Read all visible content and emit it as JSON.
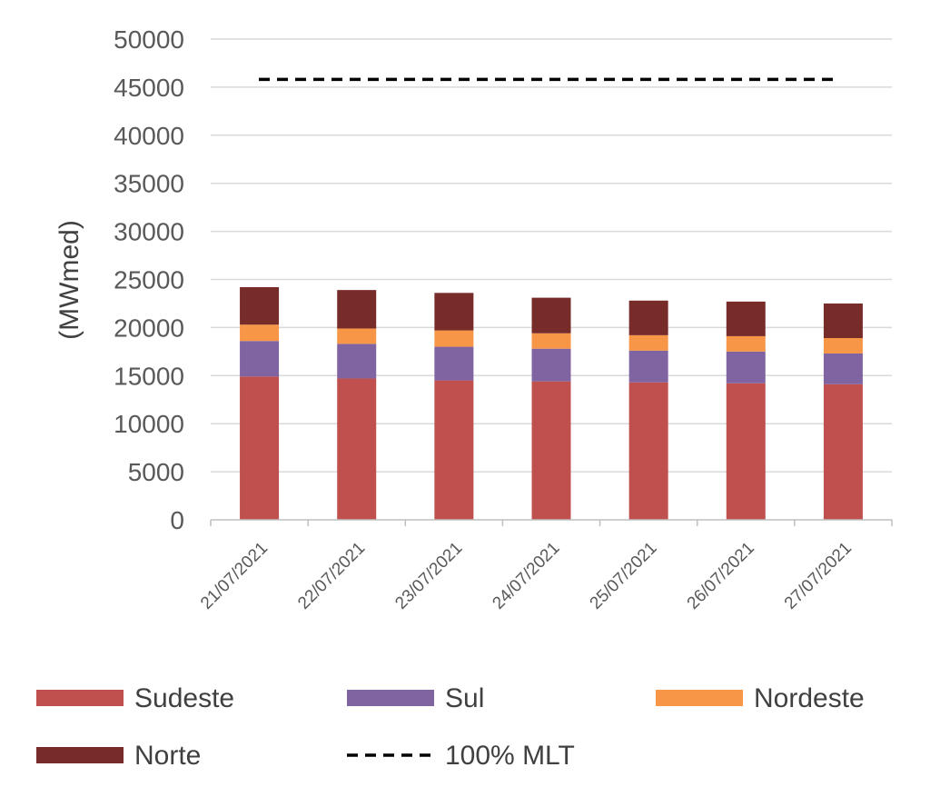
{
  "chart_data": {
    "type": "bar",
    "stacked": true,
    "title": "",
    "xlabel": "",
    "ylabel": "(MWmed)",
    "ylim": [
      0,
      50000
    ],
    "yticks": [
      0,
      5000,
      10000,
      15000,
      20000,
      25000,
      30000,
      35000,
      40000,
      45000,
      50000
    ],
    "grid": true,
    "legend_position": "bottom",
    "categories": [
      "21/07/2021",
      "22/07/2021",
      "23/07/2021",
      "24/07/2021",
      "25/07/2021",
      "26/07/2021",
      "27/07/2021"
    ],
    "series": [
      {
        "name": "Sudeste",
        "color": "#c0504d",
        "values": [
          14900,
          14700,
          14500,
          14400,
          14300,
          14200,
          14100
        ]
      },
      {
        "name": "Sul",
        "color": "#8064a2",
        "values": [
          3700,
          3600,
          3500,
          3400,
          3300,
          3300,
          3200
        ]
      },
      {
        "name": "Nordeste",
        "color": "#f79646",
        "values": [
          1700,
          1600,
          1700,
          1600,
          1600,
          1600,
          1600
        ]
      },
      {
        "name": "Norte",
        "color": "#772c2a",
        "values": [
          3900,
          4000,
          3900,
          3700,
          3600,
          3600,
          3600
        ]
      }
    ],
    "reference_line": {
      "name": "100% MLT",
      "value": 45800,
      "color": "#000000",
      "style": "dashed"
    }
  }
}
